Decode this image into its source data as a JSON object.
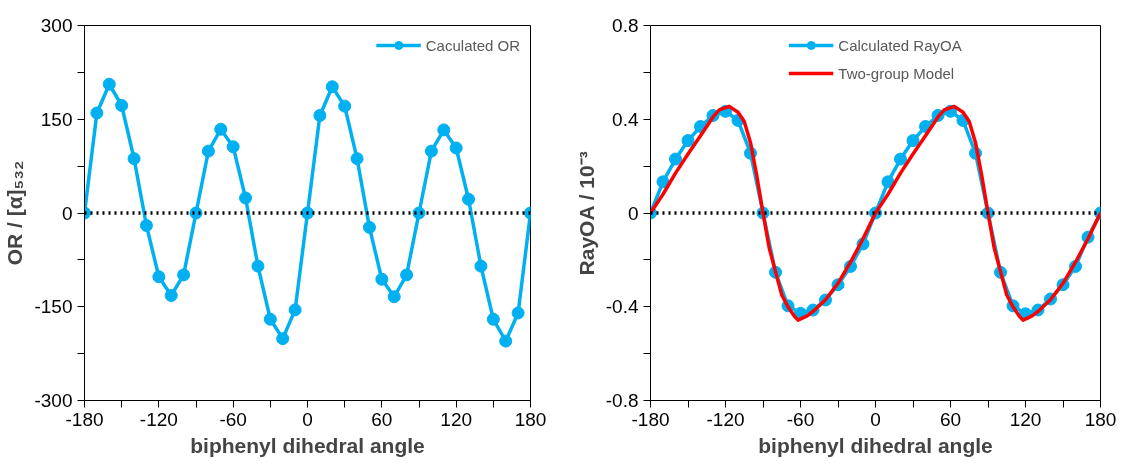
{
  "chart_data": [
    {
      "type": "line",
      "xlabel": "biphenyl dihedral angle",
      "ylabel": "OR / [α]₅₃₂",
      "xlim": [
        -180,
        180
      ],
      "ylim": [
        -300,
        300
      ],
      "xticks": [
        -180,
        {
          "value": -150,
          "label": null
        },
        -120,
        {
          "value": -90,
          "label": null
        },
        -60,
        {
          "value": -30,
          "label": null
        },
        0,
        {
          "value": 30,
          "label": null
        },
        60,
        {
          "value": 90,
          "label": null
        },
        120,
        {
          "value": 150,
          "label": null
        },
        180
      ],
      "yticks": [
        -300,
        {
          "value": -225,
          "label": null
        },
        -150,
        {
          "value": -75,
          "label": null
        },
        0,
        {
          "value": 75,
          "label": null
        },
        150,
        {
          "value": 225,
          "label": null
        },
        300
      ],
      "grid": false,
      "legend": "top right",
      "marker": "circle",
      "line_style": "solid",
      "ref_lines": [
        {
          "axis": "y",
          "value": 0,
          "color": "#000000",
          "line_style": "dotted"
        }
      ],
      "series": [
        {
          "name": "Caculated OR",
          "color": "#00b0f0",
          "x": [
            -180,
            -170,
            -160,
            -150,
            -140,
            -130,
            -120,
            -110,
            -100,
            -90,
            -80,
            -70,
            -60,
            -50,
            -40,
            -30,
            -20,
            -10,
            0,
            10,
            20,
            30,
            40,
            50,
            60,
            70,
            80,
            90,
            100,
            110,
            120,
            130,
            140,
            150,
            160,
            170,
            180
          ],
          "values": [
            0,
            160,
            206,
            172,
            87,
            -20,
            -102,
            -132,
            -99,
            0,
            99,
            134,
            106,
            24,
            -85,
            -170,
            -201,
            -155,
            0,
            156,
            202,
            171,
            87,
            -23,
            -106,
            -134,
            -99,
            0,
            99,
            133,
            104,
            22,
            -85,
            -170,
            -205,
            -160,
            0
          ]
        }
      ]
    },
    {
      "type": "line",
      "xlabel": "biphenyl dihedral angle",
      "ylabel": "RayOA / 10⁻³",
      "xlim": [
        -180,
        180
      ],
      "ylim": [
        -0.8,
        0.8
      ],
      "xticks": [
        -180,
        {
          "value": -150,
          "label": null
        },
        -120,
        {
          "value": -90,
          "label": null
        },
        -60,
        {
          "value": -30,
          "label": null
        },
        0,
        {
          "value": 30,
          "label": null
        },
        60,
        {
          "value": 90,
          "label": null
        },
        120,
        {
          "value": 150,
          "label": null
        },
        180
      ],
      "yticks": [
        {
          "value": -0.8,
          "label": "-0.8"
        },
        {
          "value": -0.6,
          "label": null
        },
        {
          "value": -0.4,
          "label": "-0.4"
        },
        {
          "value": -0.2,
          "label": null
        },
        0,
        {
          "value": 0.2,
          "label": null
        },
        {
          "value": 0.4,
          "label": "0.4"
        },
        {
          "value": 0.6,
          "label": null
        },
        {
          "value": 0.8,
          "label": "0.8"
        }
      ],
      "grid": false,
      "legend": "top",
      "line_style": "solid",
      "ref_lines": [
        {
          "axis": "y",
          "value": 0,
          "color": "#000000",
          "line_style": "dotted"
        }
      ],
      "series": [
        {
          "name": "Calculated RayOA",
          "color": "#00b0f0",
          "marker": "circle",
          "x": [
            -180,
            -170,
            -160,
            -150,
            -140,
            -130,
            -120,
            -110,
            -100,
            -90,
            -80,
            -70,
            -60,
            -50,
            -40,
            -30,
            -20,
            -10,
            0,
            10,
            20,
            30,
            40,
            50,
            60,
            70,
            80,
            90,
            100,
            110,
            120,
            130,
            140,
            150,
            160,
            170,
            180
          ],
          "values": [
            0,
            0.133,
            0.23,
            0.309,
            0.369,
            0.416,
            0.434,
            0.395,
            0.255,
            0,
            -0.253,
            -0.396,
            -0.428,
            -0.414,
            -0.371,
            -0.306,
            -0.228,
            -0.132,
            0,
            0.133,
            0.23,
            0.309,
            0.369,
            0.416,
            0.434,
            0.395,
            0.255,
            0,
            -0.253,
            -0.396,
            -0.43,
            -0.414,
            -0.367,
            -0.306,
            -0.228,
            -0.103,
            0
          ]
        },
        {
          "name": "Two-group Model",
          "color": "#ff0000",
          "marker": "none",
          "x": [
            -180,
            -170,
            -160,
            -150,
            -140,
            -130,
            -125,
            -117,
            -110,
            -105,
            -100,
            -95,
            -90,
            -85,
            -80,
            -75,
            -70,
            -65,
            -62,
            -55,
            -50,
            -40,
            -30,
            -20,
            -10,
            0,
            10,
            20,
            30,
            40,
            50,
            55,
            63,
            70,
            75,
            80,
            85,
            90,
            95,
            100,
            105,
            110,
            115,
            118,
            125,
            130,
            140,
            150,
            160,
            170,
            180
          ],
          "values": [
            0,
            0.08,
            0.17,
            0.252,
            0.33,
            0.41,
            0.44,
            0.455,
            0.43,
            0.39,
            0.3,
            0.16,
            0,
            -0.15,
            -0.25,
            -0.35,
            -0.4,
            -0.44,
            -0.457,
            -0.44,
            -0.42,
            -0.37,
            -0.3,
            -0.21,
            -0.11,
            0,
            0.08,
            0.17,
            0.252,
            0.33,
            0.41,
            0.44,
            0.455,
            0.43,
            0.39,
            0.3,
            0.16,
            0,
            -0.15,
            -0.25,
            -0.35,
            -0.4,
            -0.44,
            -0.457,
            -0.44,
            -0.42,
            -0.37,
            -0.3,
            -0.21,
            -0.11,
            0
          ]
        }
      ]
    }
  ]
}
